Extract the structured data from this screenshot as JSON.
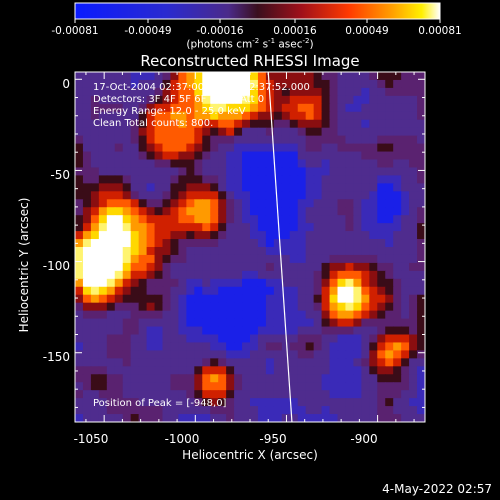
{
  "title": "Reconstructed RHESSI Image",
  "colorbar": {
    "ticks": [
      "-0.00081",
      "-0.00049",
      "-0.00016",
      "0.00016",
      "0.00049",
      "0.00081"
    ],
    "units_prefix": "(photons cm",
    "units_sup1": "-2",
    "units_mid1": " s",
    "units_sup2": "-1",
    "units_mid2": " asec",
    "units_sup3": "-2",
    "units_suffix": ")"
  },
  "info": {
    "line1": "17-Oct-2004 02:37:00.000 to 02:37:52.000",
    "line2": "Detectors: 3F 4F 5F 6F 7F 8F  Att 0",
    "line3": "Energy Range: 12.0 - 25.0 keV",
    "line4": "Clean     Total counts: 800."
  },
  "peak_label": "Position of Peak = [-948,0]",
  "x_axis": {
    "label": "Heliocentric X (arcsec)",
    "ticks": [
      "-1050",
      "-1000",
      "-950",
      "-900"
    ],
    "range": [
      -1066,
      -874
    ]
  },
  "y_axis": {
    "label": "Heliocentric Y (arcsec)",
    "ticks": [
      "0",
      "-50",
      "-100",
      "-150"
    ],
    "range": [
      -188,
      4
    ]
  },
  "date_stamp": "4-May-2022 02:57",
  "limb_line": {
    "x_at_top": -960,
    "x_at_bottom": -947
  },
  "colormap": "hessi-blue-purple-red-yellow-white"
}
